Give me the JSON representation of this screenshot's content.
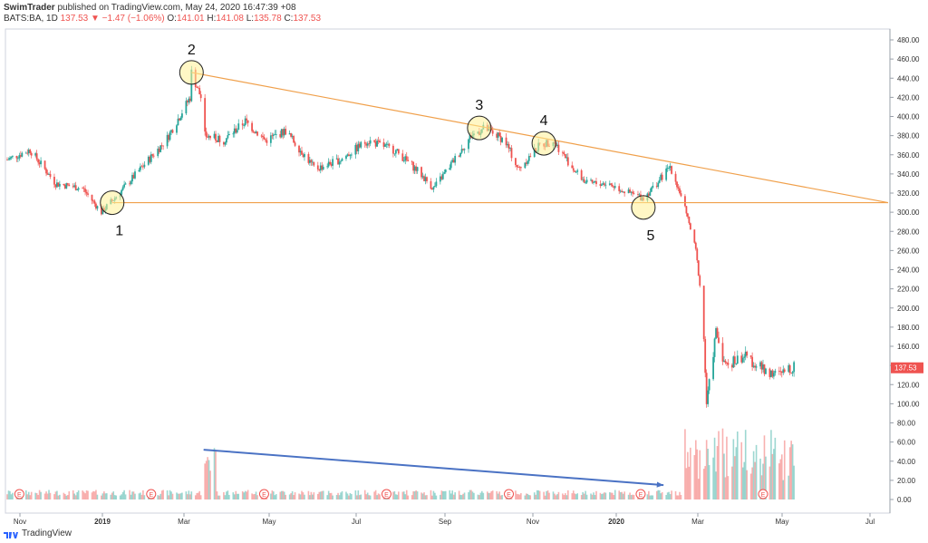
{
  "header": {
    "publisher": "SwimTrader",
    "published_text": "published on TradingView.com, May 24, 2020 16:47:39 +08"
  },
  "ohlc": {
    "symbol": "BATS:BA, 1D",
    "last": "137.53",
    "change": "▼ −1.47 (−1.06%)",
    "o_label": "O:",
    "o": "141.01",
    "h_label": "H:",
    "h": "141.08",
    "l_label": "L:",
    "l": "135.78",
    "c_label": "C:",
    "c": "137.53"
  },
  "footer": {
    "brand": "TradingView"
  },
  "colors": {
    "up": "#26a69a",
    "down": "#ef5350",
    "trendline": "#f0a04b",
    "volume_arrow": "#4a72c4",
    "price_tag": "#ef5350"
  },
  "chart_data": {
    "type": "candlestick",
    "ylim": [
      0,
      490
    ],
    "y_ticks": [
      "480.00",
      "460.00",
      "440.00",
      "420.00",
      "400.00",
      "380.00",
      "360.00",
      "340.00",
      "320.00",
      "300.00",
      "280.00",
      "260.00",
      "240.00",
      "220.00",
      "200.00",
      "180.00",
      "160.00",
      "140.00",
      "120.00",
      "100.00",
      "80.00",
      "60.00",
      "40.00",
      "20.00",
      "0.00"
    ],
    "x_ticks": [
      "Nov",
      "2019",
      "Mar",
      "May",
      "Jul",
      "Sep",
      "Nov",
      "2020",
      "Mar",
      "May",
      "Jul"
    ],
    "last_price_label": "137.53",
    "price_path": [
      [
        "2018-10-15",
        355
      ],
      [
        "2018-11-01",
        365
      ],
      [
        "2018-11-20",
        330
      ],
      [
        "2018-12-10",
        325
      ],
      [
        "2018-12-24",
        300
      ],
      [
        "2019-01-05",
        318
      ],
      [
        "2019-01-25",
        350
      ],
      [
        "2019-02-10",
        375
      ],
      [
        "2019-02-28",
        420
      ],
      [
        "2019-03-01",
        446
      ],
      [
        "2019-03-08",
        420
      ],
      [
        "2019-03-11",
        380
      ],
      [
        "2019-03-25",
        375
      ],
      [
        "2019-04-10",
        395
      ],
      [
        "2019-04-25",
        375
      ],
      [
        "2019-05-10",
        385
      ],
      [
        "2019-06-01",
        345
      ],
      [
        "2019-06-20",
        355
      ],
      [
        "2019-07-10",
        375
      ],
      [
        "2019-07-30",
        365
      ],
      [
        "2019-08-15",
        345
      ],
      [
        "2019-08-28",
        325
      ],
      [
        "2019-09-10",
        350
      ],
      [
        "2019-09-25",
        380
      ],
      [
        "2019-10-05",
        388
      ],
      [
        "2019-10-20",
        375
      ],
      [
        "2019-10-30",
        345
      ],
      [
        "2019-11-15",
        370
      ],
      [
        "2019-11-25",
        375
      ],
      [
        "2019-12-10",
        345
      ],
      [
        "2019-12-20",
        330
      ],
      [
        "2020-01-05",
        330
      ],
      [
        "2020-01-20",
        320
      ],
      [
        "2020-01-31",
        315
      ],
      [
        "2020-02-10",
        330
      ],
      [
        "2020-02-20",
        348
      ],
      [
        "2020-03-01",
        310
      ],
      [
        "2020-03-10",
        260
      ],
      [
        "2020-03-15",
        200
      ],
      [
        "2020-03-18",
        100
      ],
      [
        "2020-03-25",
        175
      ],
      [
        "2020-04-01",
        140
      ],
      [
        "2020-04-15",
        150
      ],
      [
        "2020-04-30",
        135
      ],
      [
        "2020-05-10",
        130
      ],
      [
        "2020-05-22",
        138
      ]
    ],
    "trendlines": [
      {
        "name": "resistance",
        "from": [
          "2019-03-01",
          446
        ],
        "to": [
          "2020-07-31",
          310
        ]
      },
      {
        "name": "support",
        "from": [
          "2019-01-01",
          310
        ],
        "to": [
          "2020-07-31",
          310
        ]
      }
    ],
    "volume_arrow": {
      "from": [
        "2019-03-10",
        52
      ],
      "to": [
        "2020-02-15",
        15
      ]
    },
    "annotations": [
      {
        "label": "1",
        "date": "2019-01-01",
        "price": 310
      },
      {
        "label": "2",
        "date": "2019-03-01",
        "price": 446
      },
      {
        "label": "3",
        "date": "2019-10-01",
        "price": 388
      },
      {
        "label": "4",
        "date": "2019-11-18",
        "price": 372
      },
      {
        "label": "5",
        "date": "2020-01-31",
        "price": 305
      }
    ],
    "earnings_marker": "E",
    "earnings_dates": [
      "2018-10-24",
      "2019-01-30",
      "2019-04-24",
      "2019-07-24",
      "2019-10-23",
      "2020-01-29",
      "2020-04-29"
    ]
  }
}
